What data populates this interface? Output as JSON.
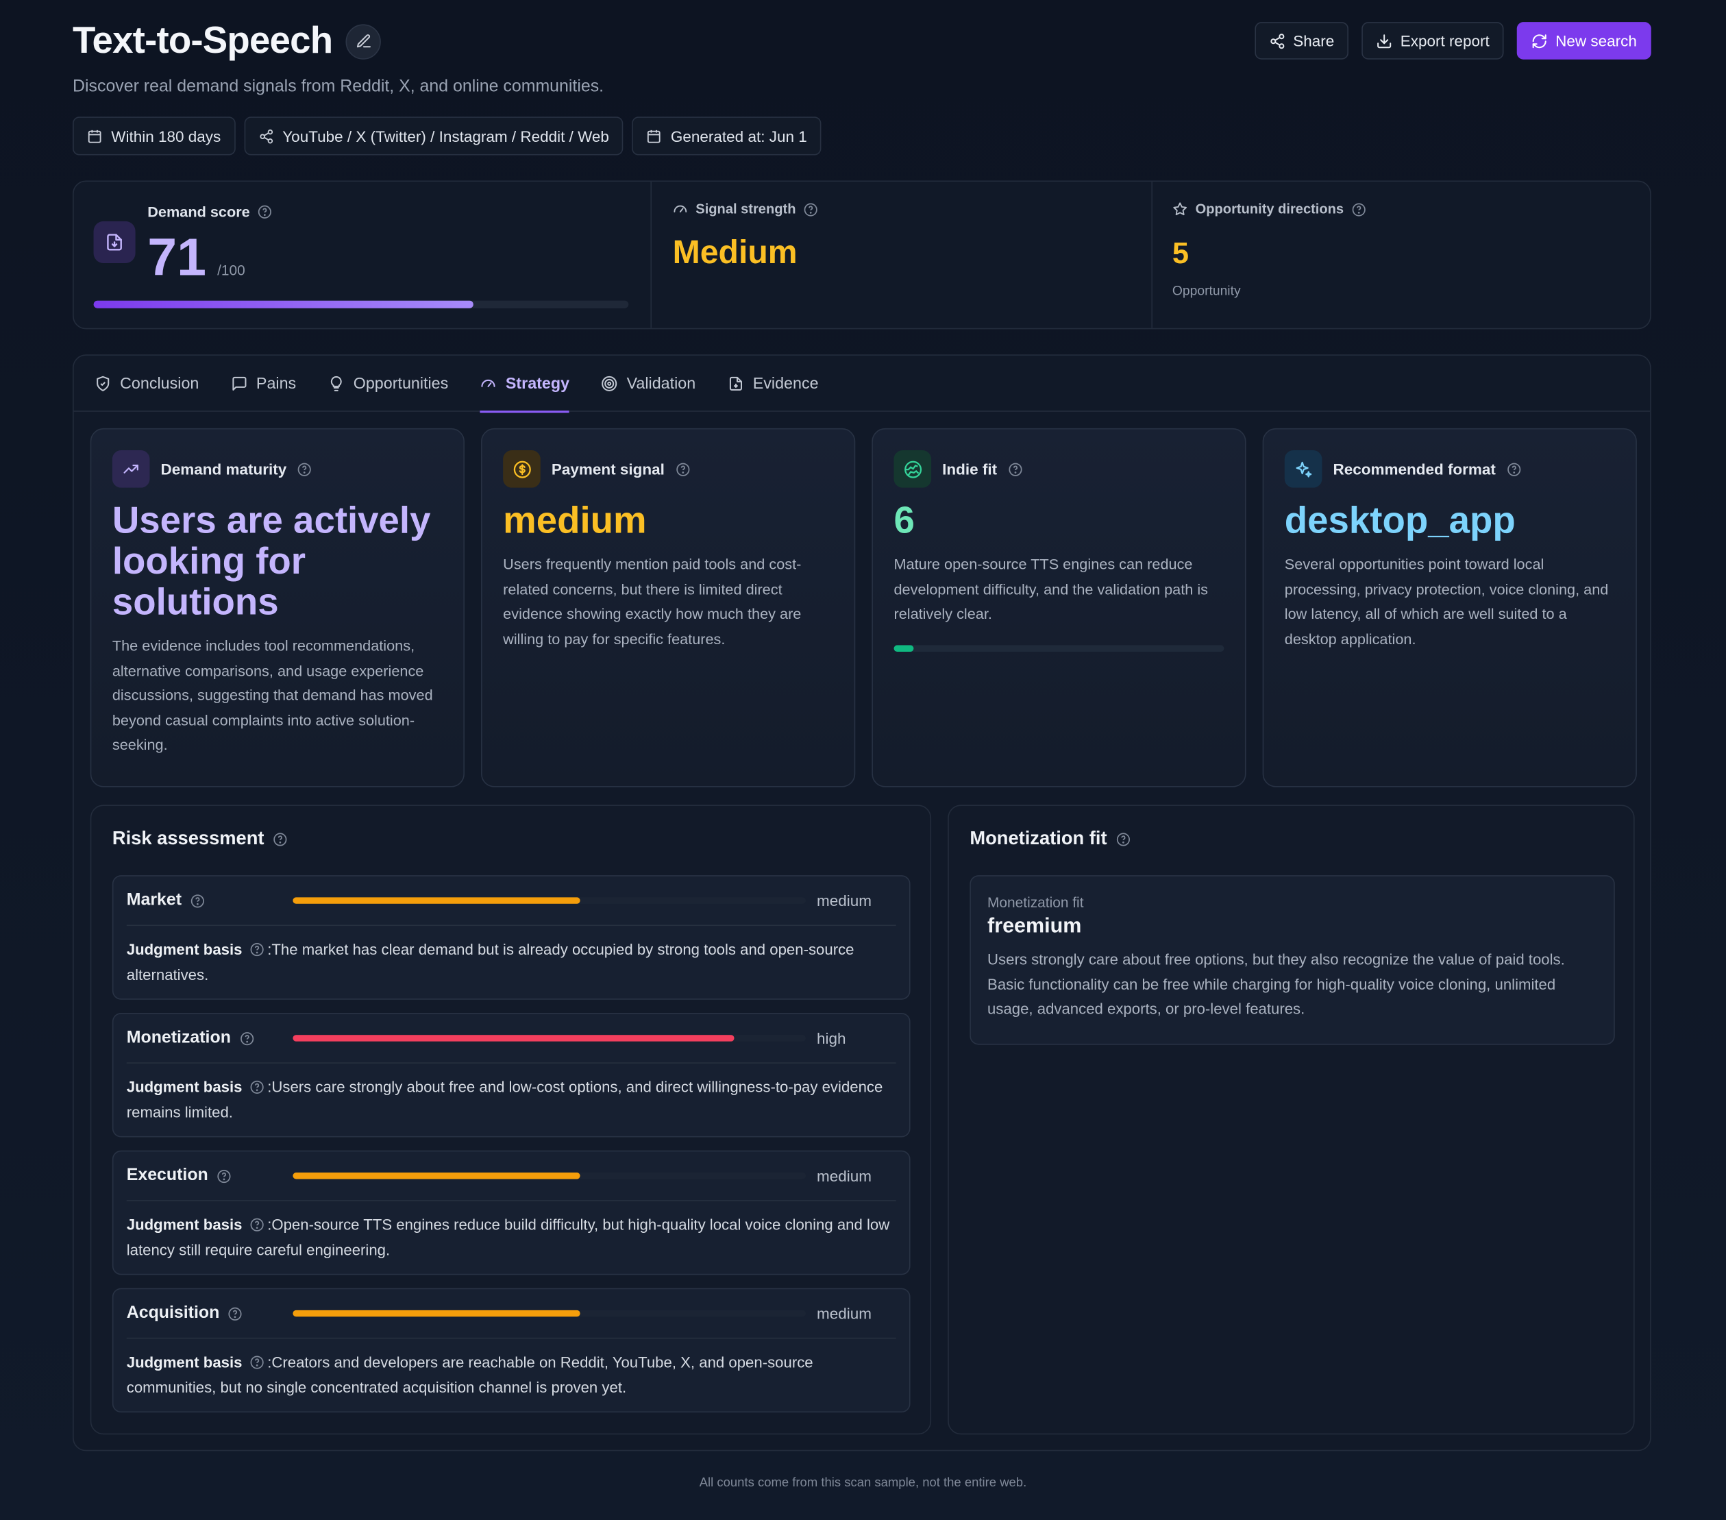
{
  "header": {
    "title": "Text-to-Speech",
    "subtitle": "Discover real demand signals from Reddit, X, and online communities.",
    "actions": {
      "share": "Share",
      "export": "Export report",
      "new_search": "New search"
    },
    "filters": {
      "period": "Within 180 days",
      "sources": "YouTube / X (Twitter) / Instagram / Reddit / Web",
      "generated": "Generated at: Jun 1"
    }
  },
  "metrics": {
    "demand_score": {
      "label": "Demand score",
      "value": "71",
      "max": "/100",
      "fraction": 0.71
    },
    "signal_strength": {
      "label": "Signal strength",
      "value": "Medium"
    },
    "opportunity_directions": {
      "label": "Opportunity directions",
      "value": "5",
      "sub": "Opportunity"
    }
  },
  "tabs": [
    {
      "label": "Conclusion",
      "icon": "shield-icon"
    },
    {
      "label": "Pains",
      "icon": "message-square-icon"
    },
    {
      "label": "Opportunities",
      "icon": "lightbulb-icon"
    },
    {
      "label": "Strategy",
      "icon": "gauge-icon",
      "active": true
    },
    {
      "label": "Validation",
      "icon": "target-icon"
    },
    {
      "label": "Evidence",
      "icon": "file-icon"
    }
  ],
  "cards": [
    {
      "title": "Demand maturity",
      "icon": "trending-up-icon",
      "value": "Users are actively looking for solutions",
      "color": "#c4b5fd",
      "text": "The evidence includes tool recommendations, alternative comparisons, and usage experience discussions, suggesting that demand has moved beyond casual complaints into active solution-seeking."
    },
    {
      "title": "Payment signal",
      "icon": "dollar-icon",
      "value": "medium",
      "color": "#fbbf24",
      "text": "Users frequently mention paid tools and cost-related concerns, but there is limited direct evidence showing exactly how much they are willing to pay for specific features."
    },
    {
      "title": "Indie fit",
      "icon": "globe-icon",
      "value": "6",
      "color": "#6ee7b7",
      "text": "Mature open-source TTS engines can reduce development difficulty, and the validation path is relatively clear.",
      "progress": 0.06
    },
    {
      "title": "Recommended format",
      "icon": "sparkles-icon",
      "value": "desktop_app",
      "color": "#7dd3fc",
      "text": "Several opportunities point toward local processing, privacy protection, voice cloning, and low latency, all of which are well suited to a desktop application."
    }
  ],
  "risk": {
    "title": "Risk assessment",
    "basis_label": "Judgment basis",
    "items": [
      {
        "name": "Market",
        "level": "medium",
        "fraction": 0.56,
        "color": "#f59e0b",
        "basis": ":The market has clear demand but is already occupied by strong tools and open-source alternatives."
      },
      {
        "name": "Monetization",
        "level": "high",
        "fraction": 0.86,
        "color": "#f43f5e",
        "basis": ":Users care strongly about free and low-cost options, and direct willingness-to-pay evidence remains limited."
      },
      {
        "name": "Execution",
        "level": "medium",
        "fraction": 0.56,
        "color": "#f59e0b",
        "basis": ":Open-source TTS engines reduce build difficulty, but high-quality local voice cloning and low latency still require careful engineering."
      },
      {
        "name": "Acquisition",
        "level": "medium",
        "fraction": 0.56,
        "color": "#f59e0b",
        "basis": ":Creators and developers are reachable on Reddit, YouTube, X, and open-source communities, but no single concentrated acquisition channel is proven yet."
      }
    ]
  },
  "monetization": {
    "title": "Monetization fit",
    "label": "Monetization fit",
    "value": "freemium",
    "text": "Users strongly care about free options, but they also recognize the value of paid tools. Basic functionality can be free while charging for high-quality voice cloning, unlimited usage, advanced exports, or pro-level features."
  },
  "footer": "All counts come from this scan sample, not the entire web."
}
